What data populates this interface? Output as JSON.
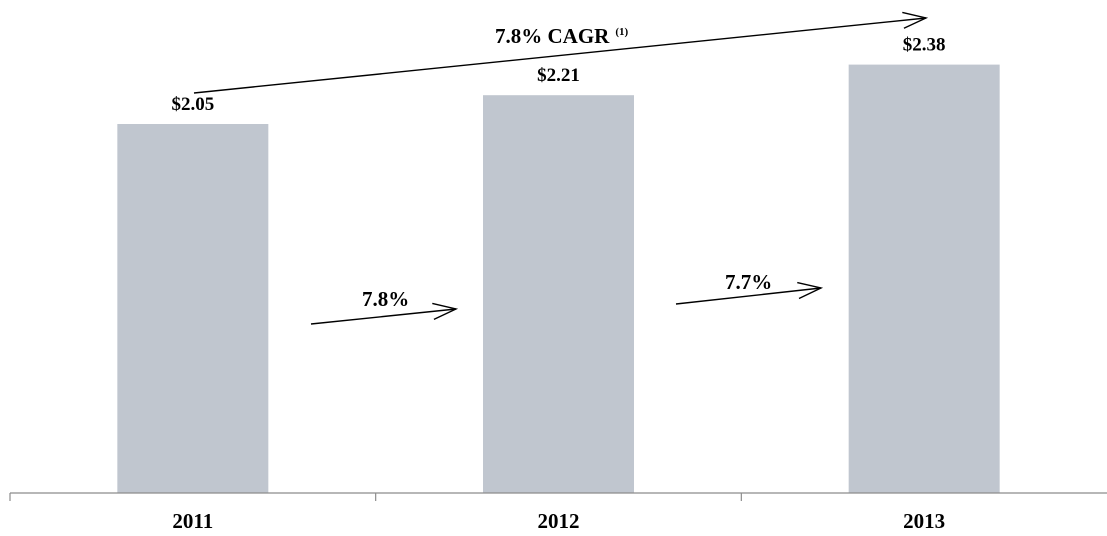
{
  "chart_data": {
    "type": "bar",
    "categories": [
      "2011",
      "2012",
      "2013"
    ],
    "values": [
      2.05,
      2.21,
      2.38
    ],
    "value_labels": [
      "$2.05",
      "$2.21",
      "$2.38"
    ],
    "ylim": [
      0,
      2.5
    ],
    "title": "",
    "xlabel": "",
    "ylabel": "",
    "grid": false,
    "legend": "none",
    "bar_color": "#c0c6cf",
    "annotations": {
      "cagr": {
        "text": "7.8% CAGR",
        "superscript": "(1)"
      },
      "growth": [
        {
          "from": "2011",
          "to": "2012",
          "text": "7.8%"
        },
        {
          "from": "2012",
          "to": "2013",
          "text": "7.7%"
        }
      ]
    }
  }
}
